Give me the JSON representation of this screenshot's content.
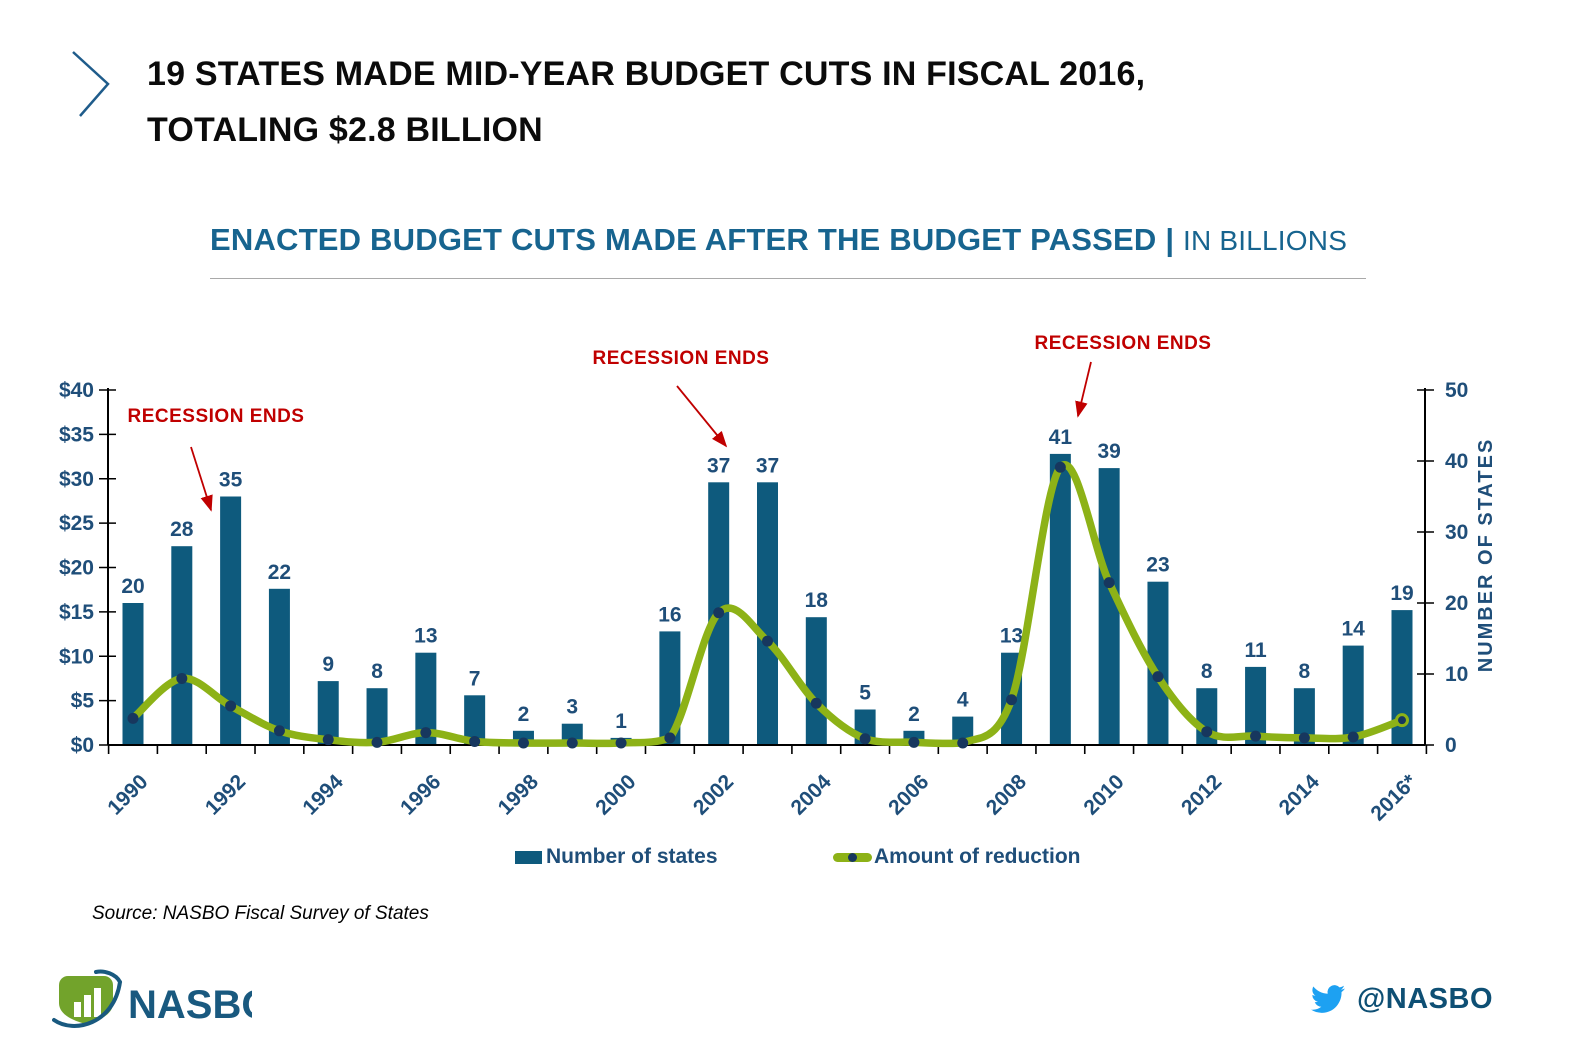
{
  "slide": {
    "title_line1": "19 STATES MADE MID-YEAR BUDGET CUTS IN FISCAL 2016,",
    "title_line2": "TOTALING $2.8 BILLION"
  },
  "chart_header": {
    "title_main": "ENACTED BUDGET CUTS MADE AFTER THE BUDGET PASSED",
    "separator": " | ",
    "title_sub": "IN BILLIONS"
  },
  "legend": {
    "bar_label": "Number of states",
    "line_label": "Amount of reduction"
  },
  "source_text": "Source: NASBO Fiscal Survey of States",
  "footer": {
    "logo_text": "NASBO",
    "twitter_handle": "@NASBO"
  },
  "colors": {
    "bar": "#0e5a7d",
    "line": "#8db217",
    "marker": "#17375e",
    "axis_text": "#1f4e79",
    "axis_line": "#000000",
    "chart_title": "#17648f",
    "annotation_red": "#c00000",
    "twitter_blue": "#1da1f2",
    "logo_green": "#72a32b",
    "logo_blue": "#19597f"
  },
  "chart_data": {
    "type": "bar+line",
    "title": "ENACTED BUDGET CUTS MADE AFTER THE BUDGET PASSED | IN BILLIONS",
    "categories": [
      "1990",
      "1991",
      "1992",
      "1993",
      "1994",
      "1995",
      "1996",
      "1997",
      "1998",
      "1999",
      "2000",
      "2001",
      "2002",
      "2003",
      "2004",
      "2005",
      "2006",
      "2007",
      "2008",
      "2009",
      "2010",
      "2011",
      "2012",
      "2013",
      "2014",
      "2015",
      "2016*"
    ],
    "series": [
      {
        "name": "Number of states",
        "type": "bar",
        "axis": "right",
        "values": [
          20,
          28,
          35,
          22,
          9,
          8,
          13,
          7,
          2,
          3,
          1,
          16,
          37,
          37,
          18,
          5,
          2,
          4,
          13,
          41,
          39,
          23,
          8,
          11,
          8,
          14,
          19
        ]
      },
      {
        "name": "Amount of reduction",
        "type": "line",
        "axis": "left",
        "values": [
          3.0,
          7.5,
          4.4,
          1.6,
          0.6,
          0.3,
          1.4,
          0.4,
          0.2,
          0.2,
          0.2,
          0.8,
          14.9,
          11.7,
          4.7,
          0.7,
          0.3,
          0.1,
          5.1,
          31.3,
          18.3,
          7.7,
          1.5,
          1.0,
          0.8,
          0.9,
          2.8
        ]
      }
    ],
    "left_axis": {
      "min": 0,
      "max": 40,
      "step": 5,
      "labels": [
        "$0",
        "$5",
        "$10",
        "$15",
        "$20",
        "$25",
        "$30",
        "$35",
        "$40"
      ]
    },
    "right_axis": {
      "min": 0,
      "max": 50,
      "step": 10,
      "labels": [
        "0",
        "10",
        "20",
        "30",
        "40",
        "50"
      ],
      "title": "NUMBER OF STATES"
    },
    "x_label_interval": 2,
    "grid": false,
    "legend_position": "bottom",
    "annotations": [
      {
        "text": "RECESSION ENDS",
        "points_to": "1991"
      },
      {
        "text": "RECESSION ENDS",
        "points_to": "2002"
      },
      {
        "text": "RECESSION ENDS",
        "points_to": "2009"
      }
    ]
  }
}
